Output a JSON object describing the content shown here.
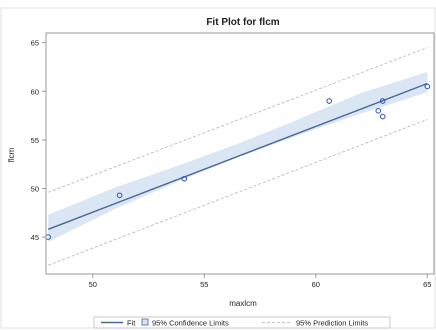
{
  "colors": {
    "band": "#dbe6f5",
    "fit_line": "#4a6894",
    "points": "#3050b8",
    "prediction": "#c2c2c2",
    "frame": "#9a9a9a",
    "text": "#222222"
  },
  "chart_data": {
    "type": "scatter",
    "title": "Fit Plot for flcm",
    "xlabel": "maxlcm",
    "ylabel": "flcm",
    "xlim": [
      47.9,
      65.3
    ],
    "ylim": [
      41.2,
      66.0
    ],
    "x_ticks": [
      50,
      55,
      60,
      65
    ],
    "y_ticks": [
      45,
      50,
      55,
      60,
      65
    ],
    "grid": false,
    "legend_position": "bottom",
    "points": [
      {
        "x": 48.0,
        "y": 45.0
      },
      {
        "x": 51.2,
        "y": 49.3
      },
      {
        "x": 54.1,
        "y": 51.0
      },
      {
        "x": 60.6,
        "y": 59.0
      },
      {
        "x": 62.8,
        "y": 58.0
      },
      {
        "x": 63.0,
        "y": 59.0
      },
      {
        "x": 63.0,
        "y": 57.4
      },
      {
        "x": 65.0,
        "y": 60.5
      }
    ],
    "fit": {
      "x": [
        48.0,
        65.0
      ],
      "y": [
        45.8,
        60.8
      ]
    },
    "confidence_limits": {
      "x": [
        48.0,
        51.0,
        54.0,
        56.5,
        59.0,
        62.0,
        65.0
      ],
      "lower": [
        44.5,
        47.9,
        50.9,
        53.2,
        55.3,
        57.7,
        59.9
      ],
      "upper": [
        47.3,
        50.1,
        52.5,
        54.6,
        56.9,
        59.8,
        62.0
      ]
    },
    "prediction_limits": {
      "x": [
        48.0,
        65.0
      ],
      "lower": [
        42.1,
        57.1
      ],
      "upper": [
        49.6,
        64.5
      ]
    },
    "legend": [
      {
        "key": "fit",
        "label": "Fit"
      },
      {
        "key": "conf",
        "label": "95% Confidence Limits"
      },
      {
        "key": "pred",
        "label": "95% Prediction Limits"
      }
    ]
  }
}
